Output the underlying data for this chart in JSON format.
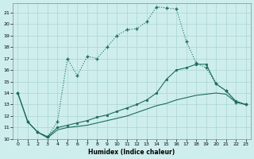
{
  "xlabel": "Humidex (Indice chaleur)",
  "bg_color": "#ceeeed",
  "grid_color": "#b0d8d8",
  "line_color": "#1e6b5e",
  "xlim": [
    -0.5,
    23.5
  ],
  "ylim": [
    10,
    21.8
  ],
  "xticks": [
    0,
    1,
    2,
    3,
    4,
    5,
    6,
    7,
    8,
    9,
    10,
    11,
    12,
    13,
    14,
    15,
    16,
    17,
    18,
    19,
    20,
    21,
    22,
    23
  ],
  "yticks": [
    10,
    11,
    12,
    13,
    14,
    15,
    16,
    17,
    18,
    19,
    20,
    21
  ],
  "line1_x": [
    0,
    1,
    2,
    3,
    4,
    5,
    6,
    7,
    8,
    9,
    10,
    11,
    12,
    13,
    14,
    15,
    16,
    17,
    18,
    19,
    20,
    21,
    22,
    23
  ],
  "line1_y": [
    14.0,
    11.5,
    10.6,
    10.2,
    11.5,
    17.0,
    15.5,
    17.2,
    17.0,
    18.0,
    19.0,
    19.5,
    19.6,
    20.2,
    21.5,
    21.4,
    21.3,
    18.5,
    16.6,
    16.2,
    14.8,
    14.2,
    13.2,
    13.0
  ],
  "line2_x": [
    0,
    1,
    2,
    3,
    4,
    5,
    6,
    7,
    8,
    9,
    10,
    11,
    12,
    13,
    14,
    15,
    16,
    17,
    18,
    19,
    20,
    21,
    22,
    23
  ],
  "line2_y": [
    14.0,
    11.5,
    10.6,
    10.2,
    11.0,
    11.2,
    11.4,
    11.6,
    11.9,
    12.1,
    12.4,
    12.7,
    13.0,
    13.4,
    14.0,
    15.2,
    16.0,
    16.2,
    16.5,
    16.5,
    14.8,
    14.2,
    13.3,
    13.0
  ],
  "line3_x": [
    0,
    1,
    2,
    3,
    4,
    5,
    6,
    7,
    8,
    9,
    10,
    11,
    12,
    13,
    14,
    15,
    16,
    17,
    18,
    19,
    20,
    21,
    22,
    23
  ],
  "line3_y": [
    14.0,
    11.5,
    10.6,
    10.1,
    10.8,
    11.0,
    11.1,
    11.2,
    11.4,
    11.6,
    11.8,
    12.0,
    12.3,
    12.6,
    12.9,
    13.1,
    13.4,
    13.6,
    13.8,
    13.9,
    14.0,
    13.9,
    13.2,
    13.0
  ]
}
